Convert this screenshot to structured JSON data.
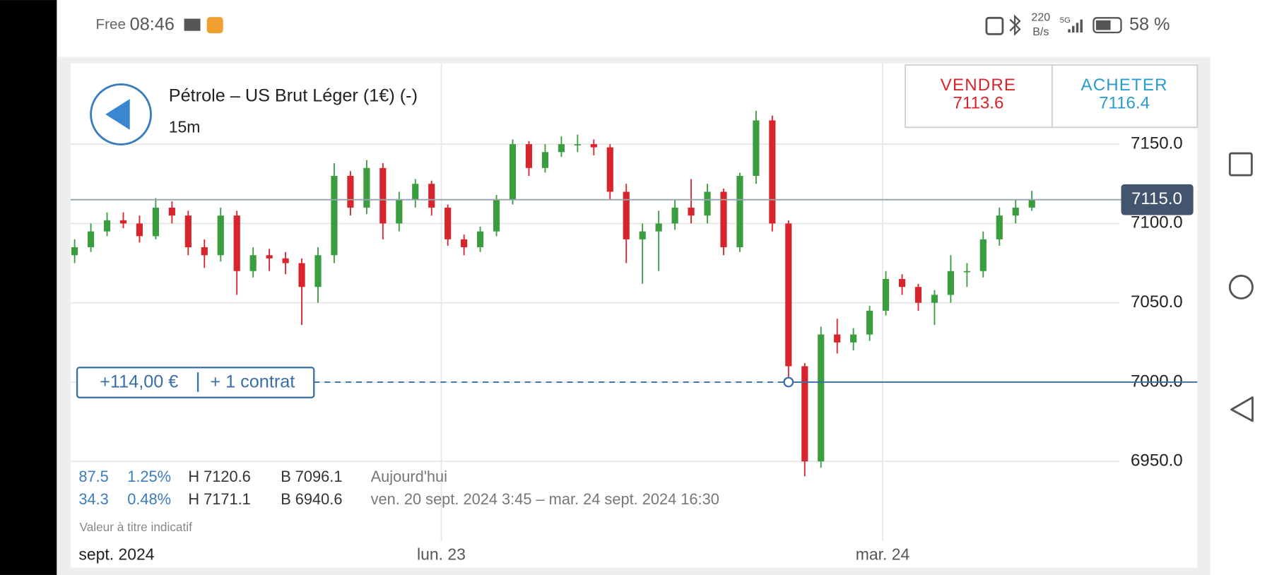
{
  "status_bar": {
    "carrier": "Free",
    "time": "08:46",
    "speed": "220",
    "speed_unit": "B/s",
    "network": "5G",
    "battery": "58 %"
  },
  "header": {
    "instrument": "Pétrole – US Brut Léger (1€) (-)",
    "timeframe": "15m"
  },
  "sell": {
    "label": "VENDRE",
    "price": "7113.6"
  },
  "buy": {
    "label": "ACHETER",
    "price": "7116.4"
  },
  "chart_data": {
    "type": "candlestick",
    "open": [
      7080,
      7085,
      7095,
      7102,
      7100,
      7092,
      7110,
      7105,
      7085,
      7080,
      7105,
      7070,
      7080,
      7078,
      7075,
      7060,
      7080,
      7130,
      7110,
      7135,
      7100,
      7115,
      7125,
      7110,
      7090,
      7085,
      7095,
      7115,
      7150,
      7135,
      7145,
      7150,
      7150,
      7148,
      7120,
      7090,
      7095,
      7100,
      7110,
      7105,
      7120,
      7085,
      7130,
      7165,
      7100,
      7010,
      6950,
      7030,
      7025,
      7030,
      7045,
      7065,
      7060,
      7050,
      7055,
      7070,
      7070,
      7090,
      7105,
      7110
    ],
    "high": [
      7090,
      7100,
      7107,
      7107,
      7105,
      7116,
      7114,
      7108,
      7090,
      7110,
      7108,
      7085,
      7084,
      7082,
      7078,
      7085,
      7138,
      7133,
      7140,
      7138,
      7120,
      7128,
      7127,
      7112,
      7093,
      7098,
      7118,
      7153,
      7152,
      7150,
      7155,
      7156,
      7153,
      7150,
      7125,
      7100,
      7108,
      7115,
      7128,
      7125,
      7122,
      7132,
      7171.1,
      7168,
      7102,
      7012,
      7035,
      7040,
      7034,
      7048,
      7070,
      7068,
      7062,
      7058,
      7080,
      7075,
      7095,
      7110,
      7115,
      7120.6
    ],
    "low": [
      7075,
      7082,
      7092,
      7097,
      7088,
      7090,
      7100,
      7080,
      7072,
      7076,
      7055,
      7066,
      7070,
      7068,
      7036,
      7050,
      7075,
      7105,
      7106,
      7090,
      7095,
      7110,
      7105,
      7086,
      7080,
      7082,
      7092,
      7112,
      7130,
      7132,
      7142,
      7145,
      7143,
      7115,
      7075,
      7062,
      7070,
      7096,
      7100,
      7100,
      7080,
      7082,
      7125,
      7095,
      7000,
      6940.6,
      6946,
      7018,
      7020,
      7026,
      7042,
      7055,
      7045,
      7036,
      7050,
      7060,
      7066,
      7086,
      7100,
      7108
    ],
    "close": [
      7085,
      7095,
      7102,
      7100,
      7092,
      7110,
      7105,
      7085,
      7080,
      7105,
      7070,
      7080,
      7078,
      7075,
      7060,
      7080,
      7130,
      7110,
      7135,
      7100,
      7115,
      7125,
      7110,
      7090,
      7085,
      7095,
      7115,
      7150,
      7135,
      7145,
      7150,
      7150,
      7148,
      7120,
      7090,
      7095,
      7100,
      7110,
      7105,
      7120,
      7085,
      7130,
      7165,
      7100,
      7010,
      6950,
      7030,
      7025,
      7030,
      7045,
      7065,
      7060,
      7050,
      7055,
      7070,
      7070,
      7090,
      7105,
      7110,
      7115
    ],
    "up_color": "#3a9d3f",
    "down_color": "#d8242b",
    "ylim": [
      6883,
      7201
    ],
    "yticks": [
      {
        "value": 6950,
        "label": "6950.0"
      },
      {
        "value": 7000,
        "label": "7000.0"
      },
      {
        "value": 7050,
        "label": "7050.0"
      },
      {
        "value": 7100,
        "label": "7100.0"
      },
      {
        "value": 7150,
        "label": "7150.0"
      }
    ],
    "xlim": [
      -0.25,
      69.2
    ],
    "xticks": [
      {
        "value": 22.6,
        "label": "lun. 23"
      },
      {
        "value": 49.8,
        "label": "mar. 24"
      }
    ],
    "period_label": "sept. 2024",
    "grid": true,
    "current_price": {
      "value": 7115,
      "label": "7115.0"
    },
    "position": {
      "value": 7000,
      "pnl": "+114,00 €",
      "size": "+ 1 contrat"
    }
  },
  "stats": {
    "rows": [
      [
        "87.5",
        "1.25%",
        "H 7120.6",
        "B 7096.1",
        "Aujourd'hui"
      ],
      [
        "34.3",
        "0.48%",
        "H 7171.1",
        "B 6940.6",
        "ven. 20 sept. 2024 3:45 – mar. 24 sept. 2024 16:30"
      ]
    ],
    "note": "Valeur à titre indicatif"
  }
}
